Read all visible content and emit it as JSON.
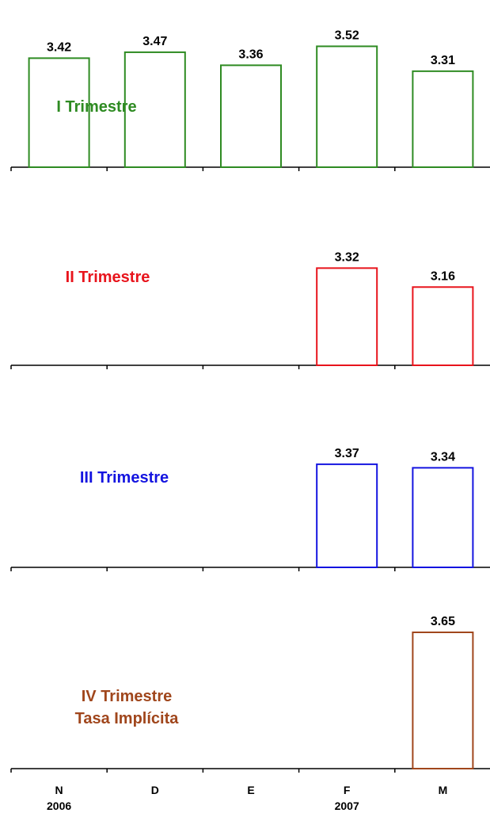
{
  "chart_data": [
    {
      "type": "bar",
      "panel_label": [
        "I Trimestre"
      ],
      "color": "#2e8b22",
      "categories": [
        "N",
        "D",
        "E",
        "F",
        "M"
      ],
      "values": [
        3.42,
        3.47,
        3.36,
        3.52,
        3.31
      ],
      "value_labels": [
        "3.42",
        "3.47",
        "3.36",
        "3.52",
        "3.31"
      ]
    },
    {
      "type": "bar",
      "panel_label": [
        "II Trimestre"
      ],
      "color": "#e8141c",
      "categories": [
        "N",
        "D",
        "E",
        "F",
        "M"
      ],
      "values": [
        null,
        null,
        null,
        3.32,
        3.16
      ],
      "value_labels": [
        "",
        "",
        "",
        "3.32",
        "3.16"
      ]
    },
    {
      "type": "bar",
      "panel_label": [
        "III Trimestre"
      ],
      "color": "#1414e0",
      "categories": [
        "N",
        "D",
        "E",
        "F",
        "M"
      ],
      "values": [
        null,
        null,
        null,
        3.37,
        3.34
      ],
      "value_labels": [
        "",
        "",
        "",
        "3.37",
        "3.34"
      ]
    },
    {
      "type": "bar",
      "panel_label": [
        "IV Trimestre",
        "Tasa Implícita"
      ],
      "color": "#a0461c",
      "categories": [
        "N",
        "D",
        "E",
        "F",
        "M"
      ],
      "values": [
        null,
        null,
        null,
        null,
        3.65
      ],
      "value_labels": [
        "",
        "",
        "",
        "",
        "3.65"
      ]
    }
  ],
  "x_axis": {
    "categories": [
      "N",
      "D",
      "E",
      "F",
      "M"
    ],
    "years": [
      {
        "label": "2006",
        "under_category": "N"
      },
      {
        "label": "2007",
        "under_category": "F"
      }
    ]
  }
}
